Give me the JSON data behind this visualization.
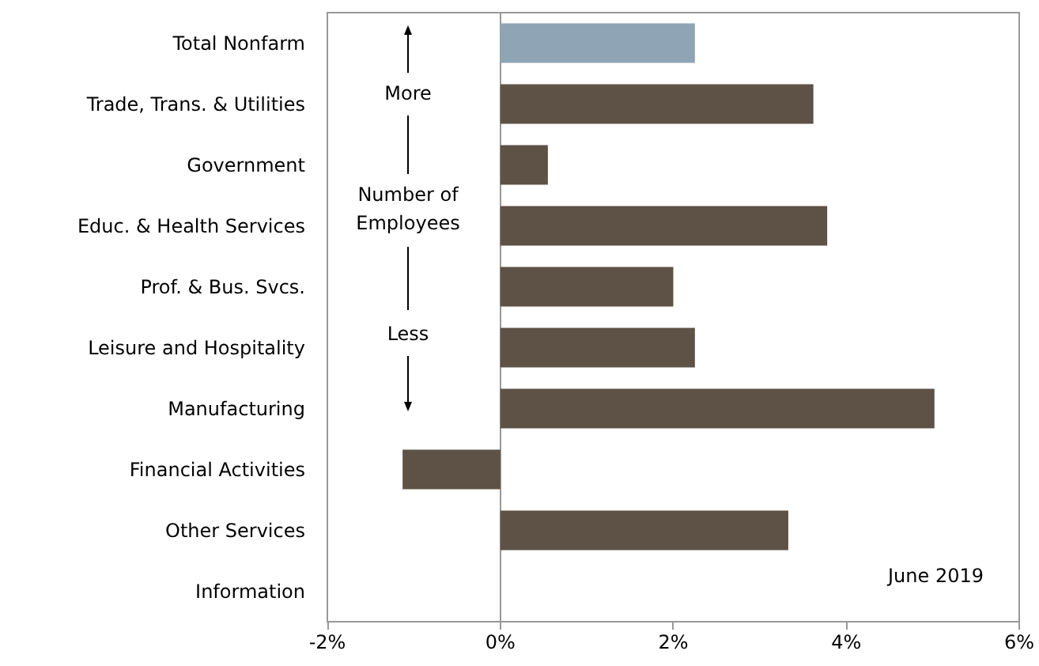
{
  "chart_data": {
    "type": "bar",
    "orientation": "horizontal",
    "categories": [
      "Total Nonfarm",
      "Trade, Trans. & Utilities",
      "Government",
      "Educ. & Health Services",
      "Prof. & Bus. Svcs.",
      "Leisure and Hospitality",
      "Manufacturing",
      "Financial Activities",
      "Other Services",
      "Information"
    ],
    "values": [
      2.25,
      3.62,
      0.55,
      3.78,
      2.0,
      2.25,
      5.02,
      -1.13,
      3.33,
      null
    ],
    "colors": [
      "#8fa5b5",
      "#5e5145",
      "#5e5145",
      "#5e5145",
      "#5e5145",
      "#5e5145",
      "#5e5145",
      "#5e5145",
      "#5e5145",
      "#5e5145"
    ],
    "xlim": [
      -2,
      6
    ],
    "xticks": [
      {
        "value": -2,
        "label": "-2%"
      },
      {
        "value": 0,
        "label": "0%"
      },
      {
        "value": 2,
        "label": "2%"
      },
      {
        "value": 4,
        "label": "4%"
      },
      {
        "value": 6,
        "label": "6%"
      }
    ],
    "annotations": [
      "More",
      "Number of\nEmployees",
      "Less",
      "June 2019"
    ]
  }
}
